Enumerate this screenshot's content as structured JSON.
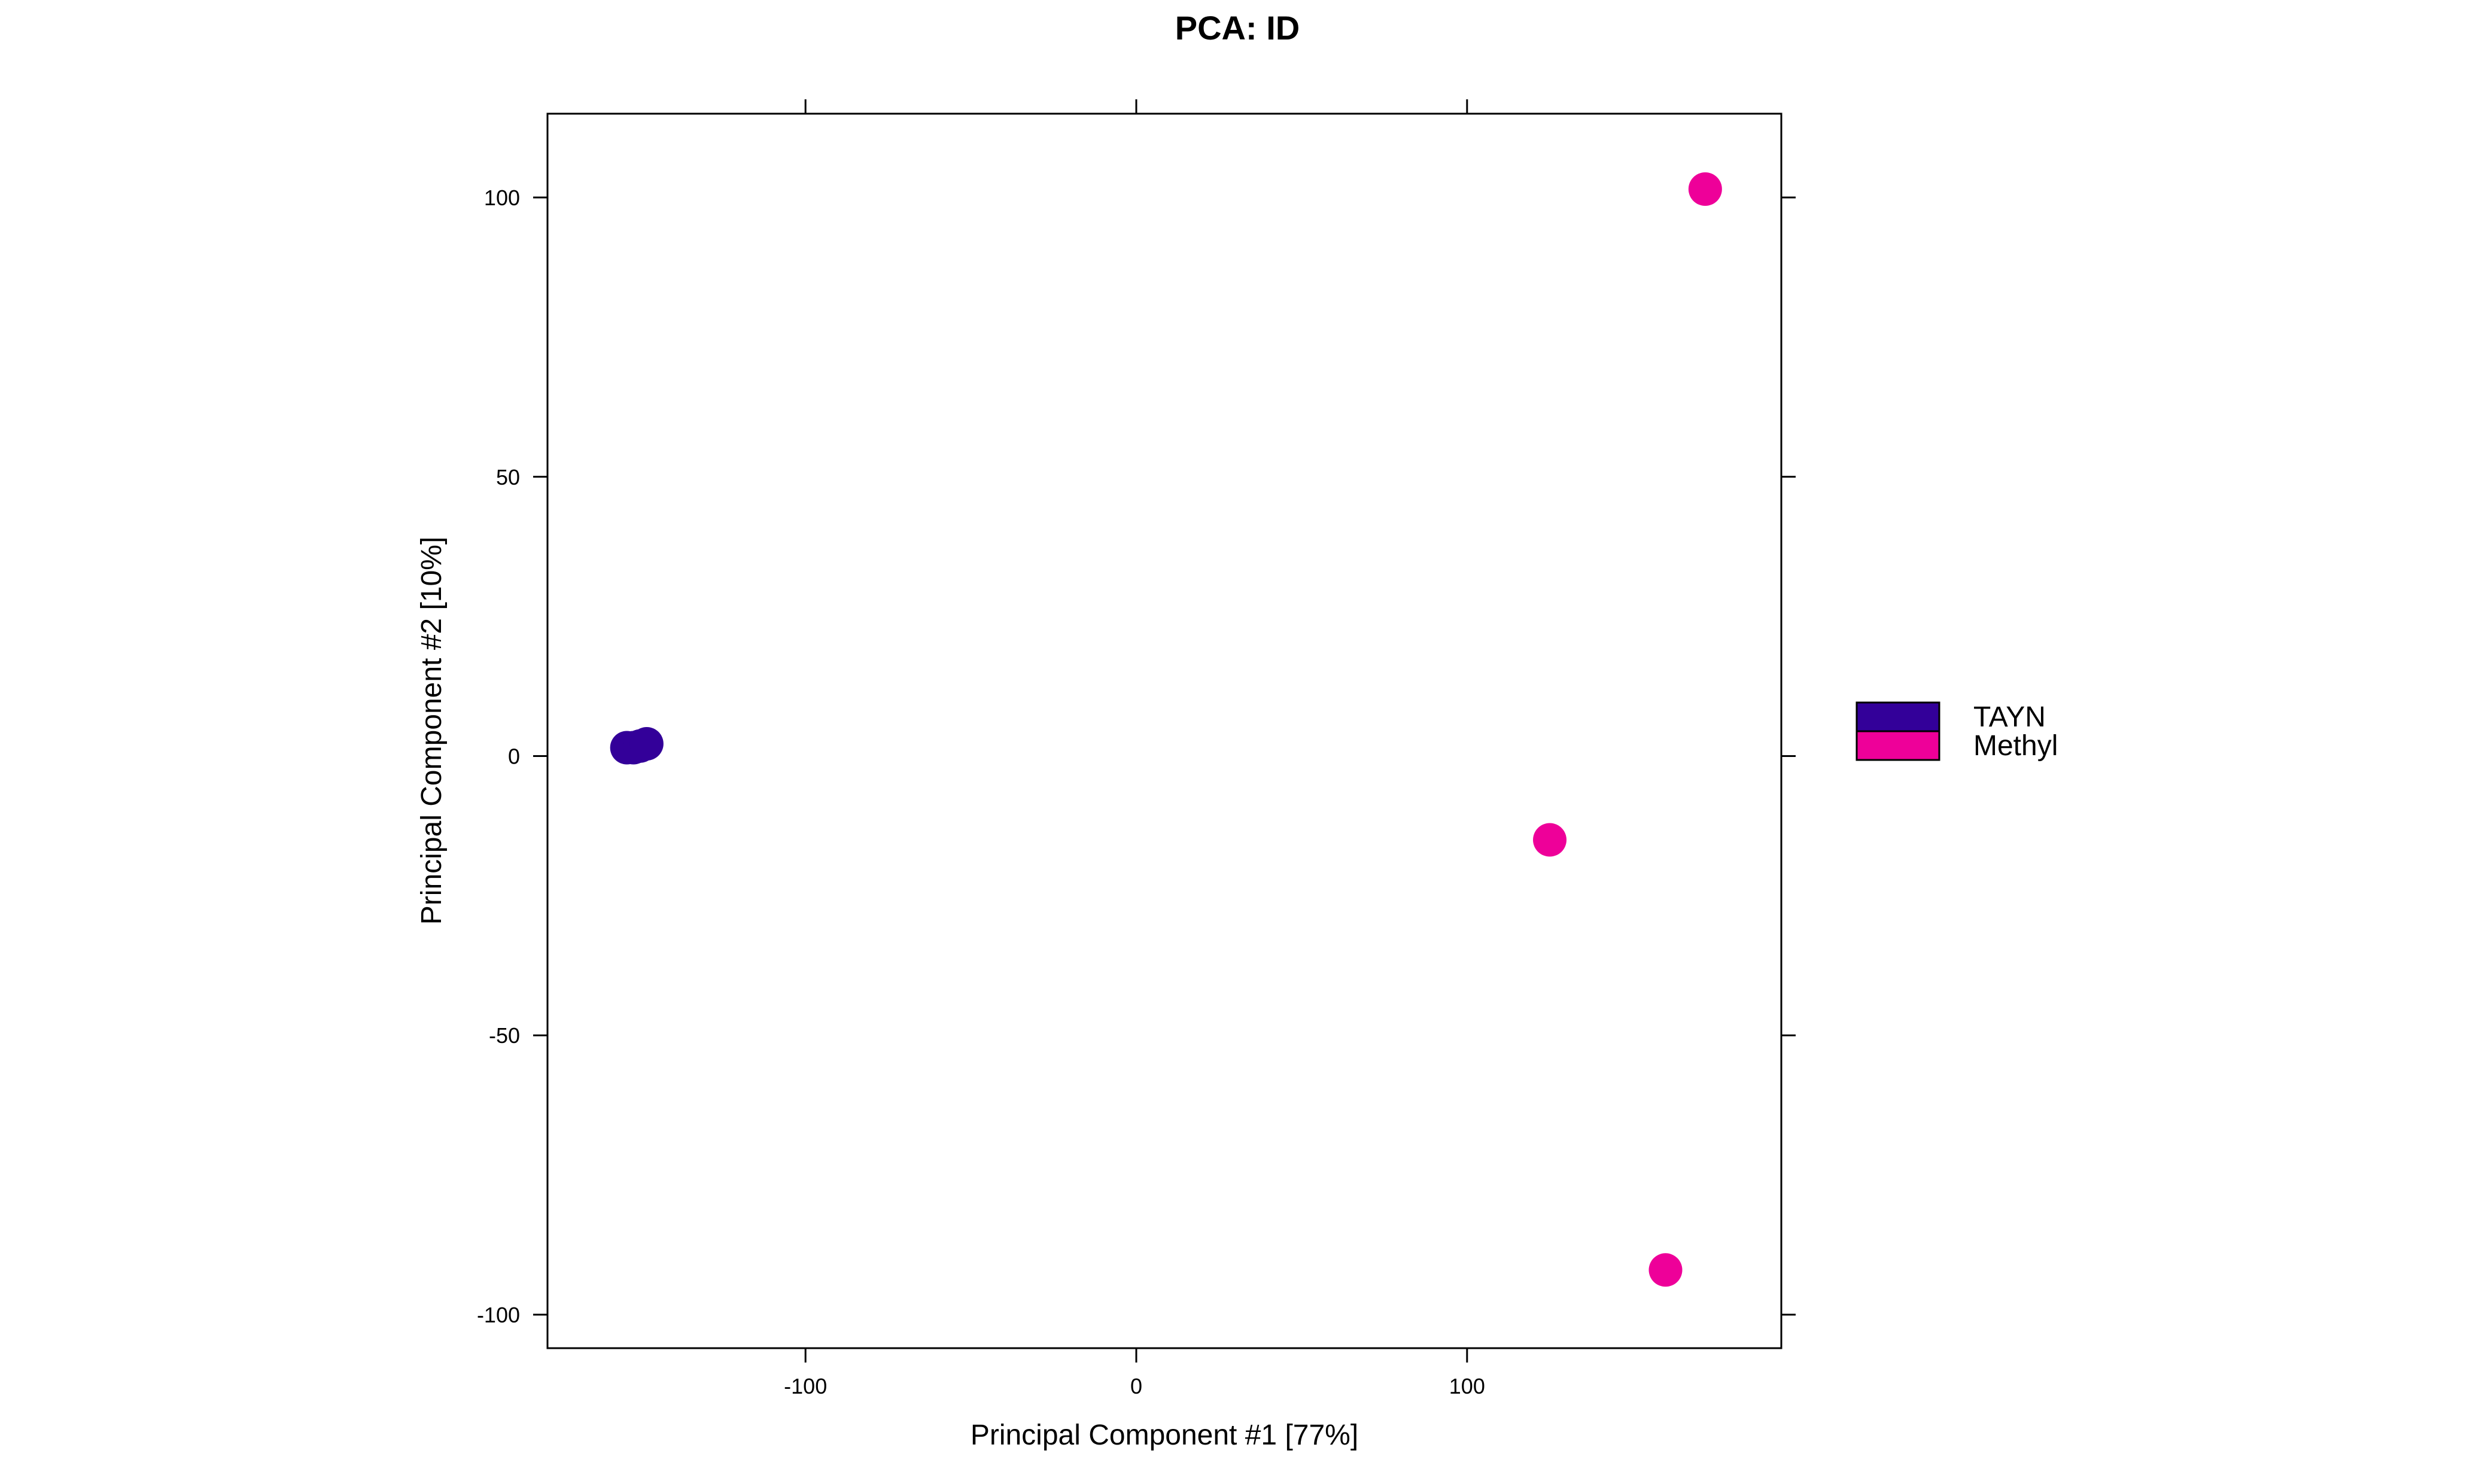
{
  "chart_data": {
    "type": "scatter",
    "title": "PCA: ID",
    "xlabel": "Principal Component #1 [77%]",
    "ylabel": "Principal Component #2 [10%]",
    "xlim": [
      -178,
      195
    ],
    "ylim": [
      -106,
      115
    ],
    "xticks": [
      -100,
      0,
      100
    ],
    "xtick_labels": [
      "-100",
      "0",
      "100"
    ],
    "yticks": [
      -100,
      -50,
      0,
      50,
      100
    ],
    "ytick_labels": [
      "-100",
      "-50",
      "0",
      "50",
      "100"
    ],
    "grid": false,
    "legend_position": "right",
    "series": [
      {
        "name": "TAYN",
        "color": "#330099",
        "points": [
          {
            "x": -154,
            "y": 1.5
          },
          {
            "x": -152,
            "y": 1.5
          },
          {
            "x": -150,
            "y": 1.8
          },
          {
            "x": -148,
            "y": 2.2
          }
        ]
      },
      {
        "name": "Methyl",
        "color": "#ee0099",
        "points": [
          {
            "x": 125,
            "y": -15
          },
          {
            "x": 172,
            "y": 101.5
          },
          {
            "x": 160,
            "y": -92
          }
        ]
      }
    ]
  }
}
